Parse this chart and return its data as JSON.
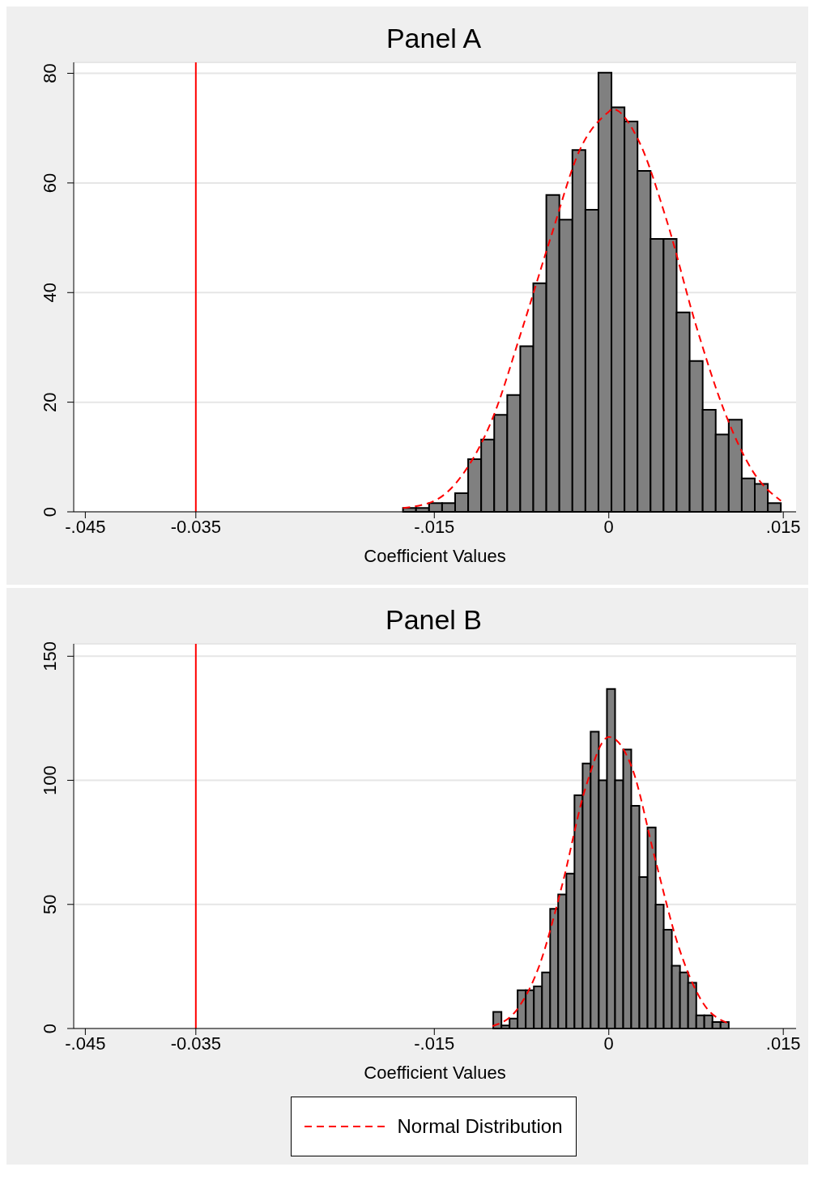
{
  "chart_data": [
    {
      "type": "histogram",
      "title": "Panel A",
      "xlabel": "Coefficient Values",
      "xlim": [
        -0.046,
        0.0161
      ],
      "xticks": [
        {
          "value": -0.045,
          "label": "-.045"
        },
        {
          "value": -0.0355,
          "label": "-0.035"
        },
        {
          "value": -0.015,
          "label": "-.015"
        },
        0,
        {
          "value": 0.015,
          "label": ".015"
        }
      ],
      "ylim": [
        0,
        82
      ],
      "yticks": [
        0,
        20,
        40,
        60,
        80
      ],
      "grid": "y",
      "legend": false,
      "ref_lines": [
        {
          "axis": "x",
          "value": -0.0355,
          "color": "#ff0000",
          "line_style": "solid"
        }
      ],
      "series": [
        {
          "type": "histogram",
          "color": "#808080",
          "bins": [
            -0.01769,
            -0.01657,
            -0.01545,
            -0.01433,
            -0.01321,
            -0.01209,
            -0.01097,
            -0.00985,
            -0.00873,
            -0.00761,
            -0.00649,
            -0.00537,
            -0.00425,
            -0.00313,
            -0.00201,
            -0.00089,
            0.00023,
            0.00135,
            0.00247,
            0.00359,
            0.00471,
            0.00583,
            0.00695,
            0.00807,
            0.00919,
            0.01031,
            0.01143,
            0.01255,
            0.01367,
            0.01479
          ],
          "values": [
            0.7,
            0.7,
            1.6,
            1.6,
            3.4,
            9.6,
            13.2,
            17.7,
            21.3,
            30.2,
            41.7,
            57.8,
            53.3,
            66,
            55.1,
            80.1,
            73.8,
            71.2,
            62.2,
            49.8,
            49.8,
            36.4,
            27.5,
            18.6,
            14.1,
            16.8,
            6.1,
            5.1,
            1.6
          ]
        },
        {
          "type": "line",
          "color": "#ff0000",
          "line_style": "dashed",
          "x": [
            -0.0177,
            -0.015,
            -0.0125,
            -0.01,
            -0.0075,
            -0.005,
            -0.0025,
            0,
            0.0003,
            0.0025,
            0.005,
            0.0075,
            0.01,
            0.0125,
            0.0148
          ],
          "values": [
            0.7,
            2,
            7,
            17,
            33,
            50,
            66,
            73,
            73.5,
            68,
            53,
            34,
            18,
            7,
            2
          ]
        }
      ]
    },
    {
      "type": "histogram",
      "title": "Panel B",
      "xlabel": "Coefficient Values",
      "xlim": [
        -0.046,
        0.0161
      ],
      "xticks": [
        {
          "value": -0.045,
          "label": "-.045"
        },
        {
          "value": -0.0355,
          "label": "-0.035"
        },
        {
          "value": -0.015,
          "label": "-.015"
        },
        0,
        {
          "value": 0.015,
          "label": ".015"
        }
      ],
      "ylim": [
        0,
        155
      ],
      "yticks": [
        0,
        50,
        100,
        150
      ],
      "grid": "y",
      "legend": "bottom",
      "ref_lines": [
        {
          "axis": "x",
          "value": -0.0355,
          "color": "#ff0000",
          "line_style": "solid"
        }
      ],
      "series": [
        {
          "type": "histogram",
          "color": "#808080",
          "bins": [
            -0.00993,
            -0.00923,
            -0.00853,
            -0.00784,
            -0.00714,
            -0.00644,
            -0.00574,
            -0.00504,
            -0.00435,
            -0.00365,
            -0.00295,
            -0.00225,
            -0.00156,
            -0.00086,
            -0.00016,
            0.00054,
            0.00124,
            0.00193,
            0.00263,
            0.00333,
            0.00403,
            0.00472,
            0.00542,
            0.00612,
            0.00682,
            0.00752,
            0.00821,
            0.00891,
            0.00961,
            0.01031
          ],
          "values": [
            6.7,
            1.2,
            4,
            15.4,
            15.4,
            17,
            22.6,
            48.2,
            54,
            62.4,
            94,
            106.8,
            119.6,
            100,
            136.8,
            100,
            112.4,
            89.7,
            61,
            81,
            49.9,
            39.8,
            25.3,
            22.6,
            18.4,
            5.3,
            5.3,
            2.6,
            2.6
          ]
        },
        {
          "type": "line",
          "name": "Normal Distribution",
          "color": "#ff0000",
          "line_style": "dashed",
          "x": [
            -0.01,
            -0.008,
            -0.006,
            -0.004,
            -0.002,
            0,
            0.002,
            0.004,
            0.006,
            0.008,
            0.0103
          ],
          "values": [
            1,
            7,
            25,
            58,
            97,
            117.5,
            105,
            68,
            33,
            11,
            2
          ]
        }
      ]
    }
  ]
}
